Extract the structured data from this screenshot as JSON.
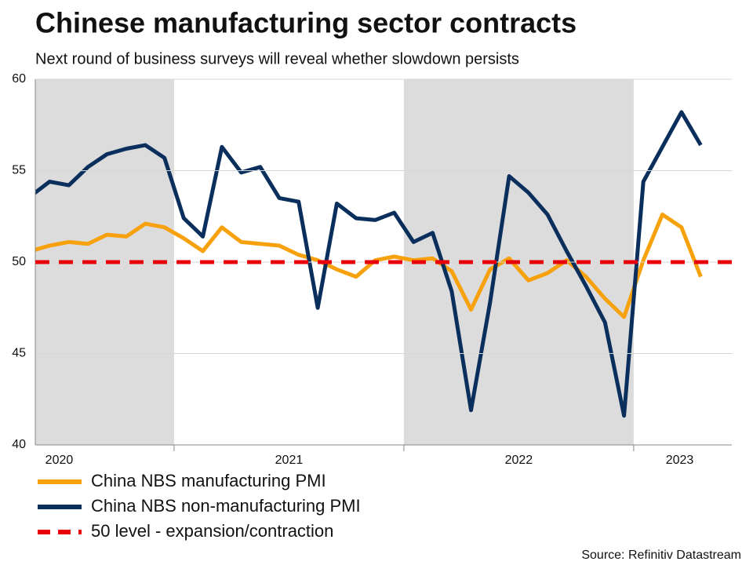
{
  "chart_data": {
    "type": "line",
    "title": "Chinese manufacturing sector contracts",
    "subtitle": "Next round of business surveys will reveal whether slowdown persists",
    "source": "Source: Refinitiv Datastream",
    "x": [
      2020.375,
      2020.458,
      2020.542,
      2020.625,
      2020.708,
      2020.792,
      2020.875,
      2020.958,
      2021.042,
      2021.125,
      2021.208,
      2021.292,
      2021.375,
      2021.458,
      2021.542,
      2021.625,
      2021.708,
      2021.792,
      2021.875,
      2021.958,
      2022.042,
      2022.125,
      2022.208,
      2022.292,
      2022.375,
      2022.458,
      2022.542,
      2022.625,
      2022.708,
      2022.792,
      2022.875,
      2022.958,
      2023.042,
      2023.125,
      2023.208,
      2023.292
    ],
    "series": [
      {
        "name": "China NBS manufacturing PMI",
        "color": "#f7a10d",
        "values": [
          50.6,
          50.9,
          51.1,
          51.0,
          51.5,
          51.4,
          52.1,
          51.9,
          51.3,
          50.6,
          51.9,
          51.1,
          51.0,
          50.9,
          50.4,
          50.1,
          49.6,
          49.2,
          50.1,
          50.3,
          50.1,
          50.2,
          49.5,
          47.4,
          49.6,
          50.2,
          49.0,
          49.4,
          50.1,
          49.2,
          48.0,
          47.0,
          50.1,
          52.6,
          51.9,
          49.2
        ]
      },
      {
        "name": "China NBS non-manufacturing PMI",
        "color": "#0b2f5c",
        "values": [
          53.6,
          54.4,
          54.2,
          55.2,
          55.9,
          56.2,
          56.4,
          55.7,
          52.4,
          51.4,
          56.3,
          54.9,
          55.2,
          53.5,
          53.3,
          47.5,
          53.2,
          52.4,
          52.3,
          52.7,
          51.1,
          51.6,
          48.4,
          41.9,
          47.8,
          54.7,
          53.8,
          52.6,
          50.6,
          48.7,
          46.7,
          41.6,
          54.4,
          56.3,
          58.2,
          56.4
        ]
      }
    ],
    "reference_line": {
      "name": "50 level - expansion/contraction",
      "value": 50,
      "color": "#e8000b"
    },
    "shaded": [
      [
        2020.396,
        2021
      ],
      [
        2022,
        2023
      ]
    ],
    "xlim": [
      2020.396,
      2023.427
    ],
    "xticks": [
      2021,
      2022,
      2023
    ],
    "year_labels": [
      {
        "value": 2020.5,
        "label": "2020"
      },
      {
        "value": 2021.5,
        "label": "2021"
      },
      {
        "value": 2022.5,
        "label": "2022"
      },
      {
        "value": 2023.2,
        "label": "2023"
      }
    ],
    "ylim": [
      40,
      60
    ],
    "yticks": [
      40,
      45,
      50,
      55,
      60
    ],
    "grid": true
  }
}
